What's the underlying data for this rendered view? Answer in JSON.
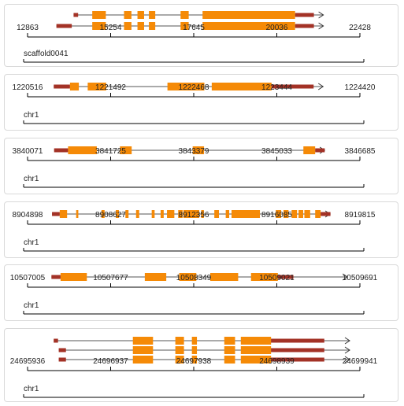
{
  "colors": {
    "exon": "#f58a07",
    "utr": "#a33226",
    "intron": "#777777",
    "axis": "#000000"
  },
  "panels": [
    {
      "chrom": "scaffold0041",
      "range": [
        12863,
        22428
      ],
      "ticks": [
        12863,
        15254,
        17645,
        20036,
        22428
      ],
      "transcripts": [
        {
          "start": 13580,
          "end": 21555,
          "utr5": [
            13580,
            13730
          ],
          "exons": [
            [
              14200,
              14650
            ],
            [
              15254,
              15500
            ],
            [
              15700,
              15920
            ],
            [
              16080,
              16290
            ],
            [
              17130,
              17400
            ],
            [
              17860,
              20930
            ]
          ],
          "utr3": [
            20930,
            21555
          ]
        },
        {
          "start": 13010,
          "end": 21555,
          "utr5": [
            13010,
            13520
          ],
          "exons": [
            [
              14200,
              14650
            ],
            [
              15254,
              15500
            ],
            [
              15700,
              15920
            ],
            [
              16080,
              16290
            ],
            [
              17130,
              17400
            ],
            [
              17860,
              20930
            ]
          ],
          "utr3": [
            20930,
            21555
          ]
        }
      ]
    },
    {
      "chrom": "chr1",
      "range": [
        1220516,
        1224420
      ],
      "ticks": [
        1220516,
        1221492,
        1222468,
        1223444,
        1224420
      ],
      "transcripts": [
        {
          "start": 1220540,
          "end": 1224060,
          "utr5": [
            1220540,
            1220760
          ],
          "exons": [
            [
              1220760,
              1220880
            ],
            [
              1221000,
              1221250
            ],
            [
              1222080,
              1222580
            ],
            [
              1222680,
              1223490
            ]
          ],
          "utr3": [
            1223490,
            1224060
          ]
        }
      ]
    },
    {
      "chrom": "chr1",
      "range": [
        3840071,
        3846685
      ],
      "ticks": [
        3840071,
        3841725,
        3843379,
        3845033,
        3846685
      ],
      "transcripts": [
        {
          "start": 3840120,
          "end": 3846110,
          "utr5": [
            3840120,
            3840440
          ],
          "exons": [
            [
              3840440,
              3841100
            ],
            [
              3841630,
              3841900
            ],
            [
              3843300,
              3843560
            ],
            [
              3845840,
              3846110
            ]
          ],
          "utr3": [
            3846110,
            3846330
          ]
        }
      ]
    },
    {
      "chrom": "chr1",
      "range": [
        8904898,
        8919815
      ],
      "ticks": [
        8904898,
        8908627,
        8912356,
        8916085,
        8919815
      ],
      "transcripts": [
        {
          "start": 8904900,
          "end": 8918800,
          "utr5": [
            8904900,
            8905300
          ],
          "exons": [
            [
              8905300,
              8905680
            ],
            [
              8906150,
              8906260
            ],
            [
              8907460,
              8907620
            ],
            [
              8908200,
              8908360
            ],
            [
              8908700,
              8908860
            ],
            [
              8909250,
              8909410
            ],
            [
              8910060,
              8910210
            ],
            [
              8910520,
              8910680
            ],
            [
              8910850,
              8911230
            ],
            [
              8911430,
              8911660
            ],
            [
              8911700,
              8912520
            ],
            [
              8912620,
              8912760
            ],
            [
              8913300,
              8913540
            ],
            [
              8913890,
              8914070
            ],
            [
              8914190,
              8915660
            ],
            [
              8916480,
              8916760
            ],
            [
              8916880,
              8917140
            ],
            [
              8917300,
              8917580
            ],
            [
              8917660,
              8917900
            ],
            [
              8917960,
              8918260
            ],
            [
              8918520,
              8918800
            ]
          ],
          "utr3": [
            8918800,
            8919310
          ]
        }
      ]
    },
    {
      "chrom": "chr1",
      "range": [
        10507005,
        10509691
      ],
      "ticks": [
        10507005,
        10507677,
        10508349,
        10509021,
        10509691
      ],
      "transcripts": [
        {
          "start": 10507000,
          "end": 10509670,
          "utr5": [
            10507000,
            10507085
          ],
          "exons": [
            [
              10507085,
              10507330
            ],
            [
              10507870,
              10508070
            ],
            [
              10508190,
              10508350
            ],
            [
              10508480,
              10508740
            ],
            [
              10508860,
              10509110
            ]
          ],
          "utr3": [
            10509110,
            10509255
          ]
        }
      ]
    },
    {
      "chrom": "chr1",
      "range": [
        24695936,
        24699941
      ],
      "ticks": [
        24695936,
        24696937,
        24697938,
        24698939,
        24699941
      ],
      "transcripts": [
        {
          "start": 24695960,
          "end": 24699941,
          "utr5": [
            24695960,
            24696020
          ],
          "exons": [],
          "utr3": [
            24698939,
            24699720
          ],
          "cds": [
            [
              24697060,
              24697340
            ],
            [
              24697650,
              24697770
            ],
            [
              24697880,
              24697950
            ],
            [
              24698330,
              24698480
            ],
            [
              24698560,
              24698980
            ]
          ]
        },
        {
          "start": 24696030,
          "end": 24699941,
          "utr5": [
            24696030,
            24696130
          ],
          "exons": [],
          "utr3": [
            24698939,
            24699720
          ],
          "cds": [
            [
              24697060,
              24697340
            ],
            [
              24697650,
              24697770
            ],
            [
              24697880,
              24697950
            ],
            [
              24698330,
              24698480
            ],
            [
              24698560,
              24698980
            ]
          ]
        },
        {
          "start": 24696030,
          "end": 24699941,
          "utr5": [
            24696030,
            24696130
          ],
          "exons": [],
          "utr3": [
            24698939,
            24699720
          ],
          "cds": [
            [
              24697060,
              24697340
            ],
            [
              24697650,
              24697770
            ],
            [
              24697880,
              24697950
            ],
            [
              24698330,
              24698480
            ],
            [
              24698560,
              24698980
            ]
          ]
        }
      ]
    }
  ]
}
